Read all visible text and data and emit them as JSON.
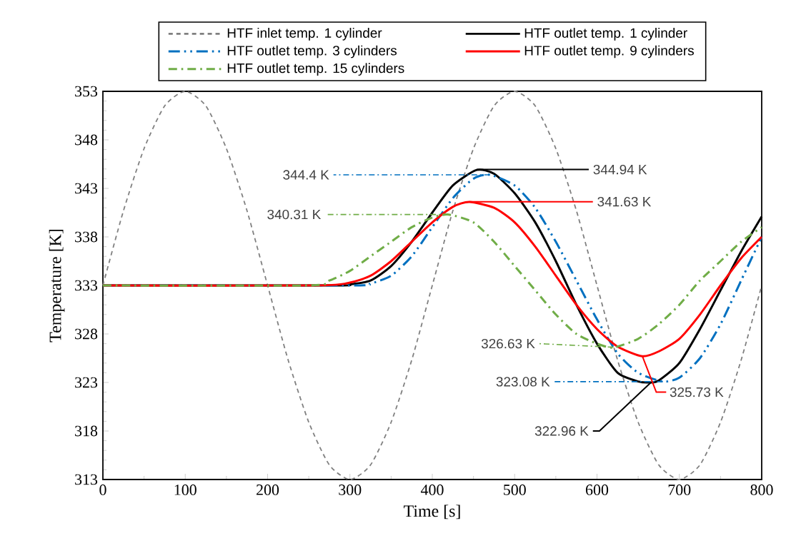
{
  "chart_data": {
    "type": "line",
    "xlabel": "Time [s]",
    "ylabel": "Temperature [K]",
    "xlim": [
      0,
      800
    ],
    "xticks": [
      0,
      100,
      200,
      300,
      400,
      500,
      600,
      700,
      800
    ],
    "ylim": [
      313,
      353
    ],
    "yticks": [
      313,
      318,
      323,
      328,
      333,
      338,
      343,
      348,
      353
    ],
    "legend": "top",
    "series": [
      {
        "name": "HTF inlet temp. 1 cylinder",
        "color": "#808080",
        "line_style": "dashed",
        "x": [
          0,
          25,
          50,
          75,
          100,
          125,
          150,
          175,
          200,
          225,
          250,
          275,
          300,
          325,
          350,
          375,
          400,
          425,
          450,
          475,
          500,
          525,
          550,
          575,
          600,
          625,
          650,
          675,
          700,
          725,
          750,
          775,
          800
        ],
        "values": [
          333,
          340.7,
          347.1,
          351.5,
          353,
          351.5,
          347.1,
          340.7,
          333,
          325.3,
          318.9,
          314.5,
          313,
          314.5,
          318.9,
          325.3,
          333,
          340.7,
          347.1,
          351.5,
          353,
          351.5,
          347.1,
          340.7,
          333,
          325.3,
          318.9,
          314.5,
          313,
          314.5,
          318.9,
          325.3,
          333
        ]
      },
      {
        "name": "HTF outlet temp. 1 cylinder",
        "color": "#000000",
        "line_style": "solid",
        "x": [
          0,
          280,
          300,
          325,
          350,
          375,
          400,
          425,
          454,
          475,
          500,
          525,
          550,
          575,
          600,
          625,
          650,
          665,
          675,
          700,
          725,
          750,
          775,
          800
        ],
        "values": [
          333,
          333,
          333.1,
          333.5,
          335,
          337.5,
          340.5,
          343.3,
          344.9,
          344.5,
          342.5,
          339.5,
          335.5,
          331,
          327,
          324,
          323.1,
          323,
          323.2,
          325,
          328.5,
          332.5,
          336.5,
          340.1
        ]
      },
      {
        "name": "HTF outlet temp. 3 cylinders",
        "color": "#0070c0",
        "line_style": "dashed",
        "x": [
          0,
          300,
          325,
          350,
          375,
          400,
          425,
          450,
          470,
          500,
          525,
          550,
          575,
          600,
          625,
          650,
          680,
          700,
          725,
          750,
          775,
          800
        ],
        "values": [
          333,
          333,
          333.2,
          334,
          336,
          339,
          342,
          344,
          344.4,
          343.3,
          341,
          337.5,
          333.5,
          329.5,
          326,
          324,
          323.1,
          323.5,
          325.5,
          329,
          333.5,
          338
        ]
      },
      {
        "name": "HTF outlet temp. 9 cylinders",
        "color": "#ff0000",
        "line_style": "solid",
        "x": [
          0,
          260,
          300,
          325,
          350,
          375,
          400,
          425,
          445,
          475,
          500,
          525,
          550,
          575,
          600,
          625,
          655,
          675,
          700,
          725,
          750,
          775,
          800
        ],
        "values": [
          333,
          333,
          333.3,
          334,
          335.5,
          337.5,
          339.5,
          341.1,
          341.6,
          341,
          339.5,
          337,
          334,
          331,
          328.5,
          326.7,
          325.7,
          326.2,
          327.5,
          330,
          333,
          335.8,
          338
        ]
      },
      {
        "name": "HTF outlet temp. 15 cylinders",
        "color": "#70ad47",
        "line_style": "dashed",
        "x": [
          0,
          250,
          275,
          300,
          325,
          350,
          375,
          400,
          420,
          450,
          475,
          500,
          525,
          550,
          575,
          600,
          620,
          650,
          675,
          700,
          725,
          750,
          775,
          800
        ],
        "values": [
          333,
          333,
          333.5,
          334.5,
          336,
          337.5,
          339,
          340,
          340.3,
          339.5,
          337.5,
          335,
          332.5,
          330,
          328,
          327,
          326.6,
          327.5,
          329,
          331,
          333.5,
          335.5,
          337.5,
          339
        ]
      }
    ],
    "annotations": [
      {
        "text": "344.4 K",
        "x": 470,
        "y": 344.4
      },
      {
        "text": "340.31 K",
        "x": 420,
        "y": 340.31
      },
      {
        "text": "344.94 K",
        "x": 454,
        "y": 344.94
      },
      {
        "text": "341.63 K",
        "x": 445,
        "y": 341.63
      },
      {
        "text": "326.63 K",
        "x": 620,
        "y": 326.63
      },
      {
        "text": "323.08 K",
        "x": 680,
        "y": 323.08
      },
      {
        "text": "325.73 K",
        "x": 655,
        "y": 325.73
      },
      {
        "text": "322.96 K",
        "x": 665,
        "y": 322.96
      }
    ]
  }
}
